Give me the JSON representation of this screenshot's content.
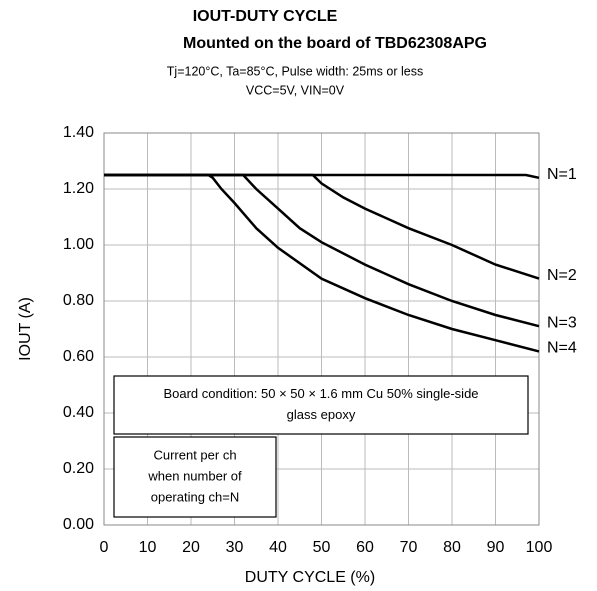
{
  "chart_data": {
    "type": "line",
    "title": "IOUT-DUTY CYCLE",
    "subtitle": "Mounted on the board of TBD62308APG",
    "conditions": [
      "Tj=120°C, Ta=85°C, Pulse width: 25ms or less",
      "VCC=5V, VIN=0V"
    ],
    "xlabel": "DUTY CYCLE (%)",
    "ylabel": "IOUT (A)",
    "xlim": [
      0,
      100
    ],
    "xticks": [
      0,
      10,
      20,
      30,
      40,
      50,
      60,
      70,
      80,
      90,
      100
    ],
    "ylim": [
      0,
      1.4
    ],
    "yticks": [
      {
        "value": 0,
        "label": "0.00"
      },
      {
        "value": 0.2,
        "label": "0.20"
      },
      {
        "value": 0.4,
        "label": "0.40"
      },
      {
        "value": 0.6,
        "label": "0.60"
      },
      {
        "value": 0.8,
        "label": "0.80"
      },
      {
        "value": 1.0,
        "label": "1.00"
      },
      {
        "value": 1.2,
        "label": "1.20"
      },
      {
        "value": 1.4,
        "label": "1.40"
      }
    ],
    "grid": true,
    "series": [
      {
        "name": "N=1",
        "color": "#000000",
        "x": [
          0,
          97,
          100
        ],
        "values": [
          1.25,
          1.25,
          1.24
        ]
      },
      {
        "name": "N=2",
        "color": "#000000",
        "x": [
          0,
          48,
          50,
          55,
          60,
          70,
          80,
          90,
          100
        ],
        "values": [
          1.25,
          1.25,
          1.22,
          1.17,
          1.13,
          1.06,
          1.0,
          0.93,
          0.88
        ]
      },
      {
        "name": "N=3",
        "color": "#000000",
        "x": [
          0,
          32,
          35,
          40,
          45,
          50,
          60,
          70,
          80,
          90,
          100
        ],
        "values": [
          1.25,
          1.25,
          1.2,
          1.13,
          1.06,
          1.01,
          0.93,
          0.86,
          0.8,
          0.75,
          0.71
        ]
      },
      {
        "name": "N=4",
        "color": "#000000",
        "x": [
          0,
          24,
          25,
          27,
          30,
          35,
          40,
          50,
          60,
          70,
          80,
          90,
          100
        ],
        "values": [
          1.25,
          1.25,
          1.24,
          1.2,
          1.15,
          1.06,
          0.99,
          0.88,
          0.81,
          0.75,
          0.7,
          0.66,
          0.62
        ]
      }
    ],
    "annotations": [
      [
        "Board condition: 50 × 50 × 1.6 mm Cu 50% single-side",
        "glass epoxy"
      ],
      [
        "Current per ch",
        "when number of",
        "operating ch=N"
      ]
    ]
  }
}
